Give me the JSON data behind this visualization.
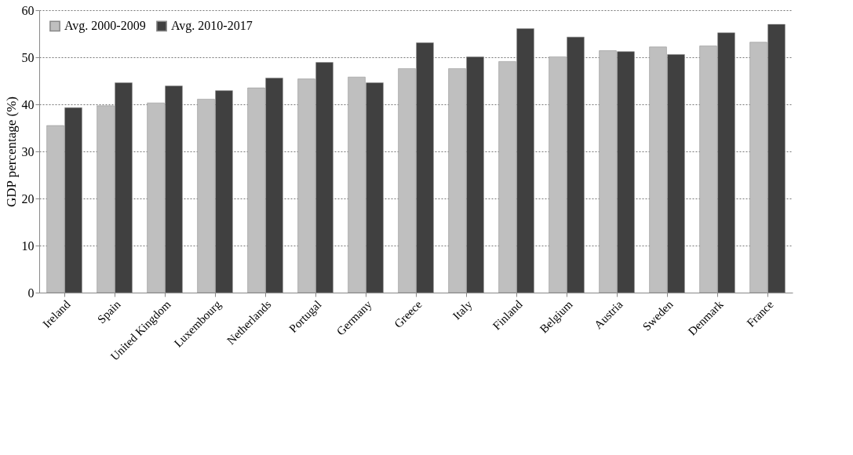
{
  "chart_data": {
    "type": "bar",
    "ylabel": "GDP percentage (%)",
    "categories": [
      "Ireland",
      "Spain",
      "United Kingdom",
      "Luxembourg",
      "Netherlands",
      "Portugal",
      "Germany",
      "Greece",
      "Italy",
      "Finland",
      "Belgium",
      "Austria",
      "Sweden",
      "Denmark",
      "France"
    ],
    "series": [
      {
        "name": "Avg. 2000-2009",
        "color": "#bfbfbf",
        "values": [
          35.5,
          39.7,
          40.3,
          41.1,
          43.5,
          45.4,
          45.8,
          47.6,
          47.6,
          49.1,
          50.1,
          51.4,
          52.2,
          52.4,
          53.2
        ]
      },
      {
        "name": "Avg. 2010-2017",
        "color": "#404040",
        "values": [
          39.3,
          44.6,
          43.9,
          42.9,
          45.6,
          48.9,
          44.6,
          53.1,
          50.1,
          56.1,
          54.3,
          51.2,
          50.6,
          55.2,
          57.0
        ]
      }
    ],
    "ylim": [
      0,
      60
    ],
    "yticks": [
      0,
      10,
      20,
      30,
      40,
      50,
      60
    ],
    "grid": "y",
    "legend": "top left"
  }
}
